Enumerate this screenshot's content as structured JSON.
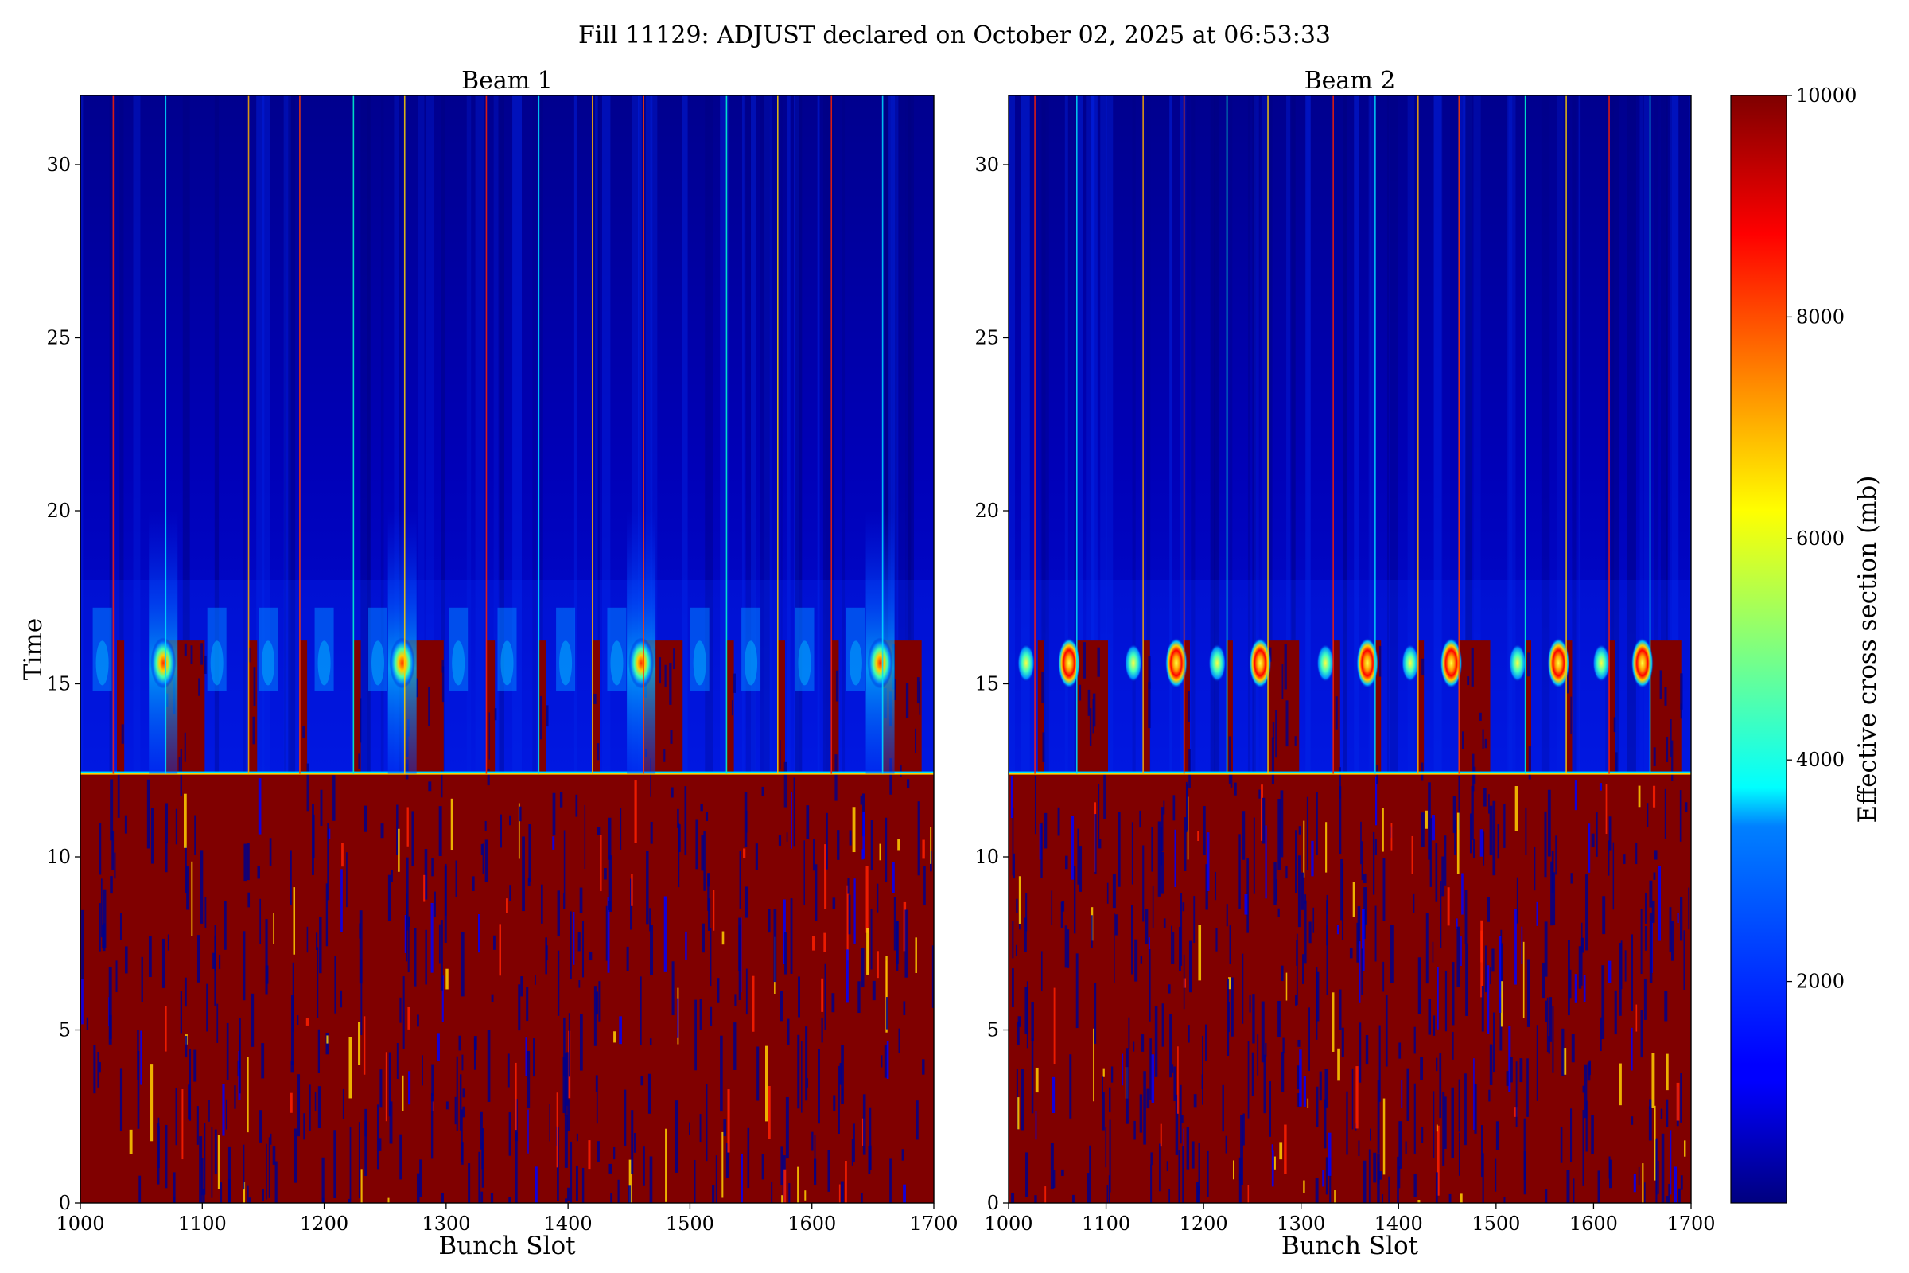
{
  "figure_title": "Fill 11129: ADJUST declared on October 02, 2025 at 06:53:33",
  "colorbar": {
    "label": "Effective cross section (mb)",
    "range": [
      0,
      10000
    ],
    "ticks": [
      "2000",
      "4000",
      "6000",
      "8000",
      "10000"
    ],
    "colormap": "jet"
  },
  "chart_data": [
    {
      "type": "heatmap",
      "title": "Beam 1",
      "xlabel": "Bunch Slot",
      "ylabel": "Time",
      "xlim": [
        1000,
        1700
      ],
      "ylim": [
        0,
        32
      ],
      "xticks": [
        "1000",
        "1100",
        "1200",
        "1300",
        "1400",
        "1500",
        "1600",
        "1700"
      ],
      "yticks": [
        "0",
        "5",
        "10",
        "15",
        "20",
        "25",
        "30"
      ],
      "saturated_below_time": 12.4,
      "bright_columns": [
        1027,
        1070,
        1138,
        1180,
        1224,
        1266,
        1333,
        1376,
        1420,
        1462,
        1530,
        1572,
        1616,
        1658
      ],
      "train_gaps": [
        [
          1030,
          1036
        ],
        [
          1070,
          1102
        ],
        [
          1138,
          1145
        ],
        [
          1180,
          1186
        ],
        [
          1224,
          1230
        ],
        [
          1266,
          1298
        ],
        [
          1333,
          1340
        ],
        [
          1376,
          1382
        ],
        [
          1420,
          1426
        ],
        [
          1462,
          1494
        ],
        [
          1530,
          1536
        ],
        [
          1572,
          1578
        ],
        [
          1616,
          1622
        ],
        [
          1658,
          1690
        ]
      ],
      "hotspots": [
        {
          "slot": 1068,
          "time": 15.6
        },
        {
          "slot": 1264,
          "time": 15.6
        },
        {
          "slot": 1460,
          "time": 15.6
        },
        {
          "slot": 1656,
          "time": 15.6
        }
      ]
    },
    {
      "type": "heatmap",
      "title": "Beam 2",
      "xlabel": "Bunch Slot",
      "ylabel": "",
      "xlim": [
        1000,
        1700
      ],
      "ylim": [
        0,
        32
      ],
      "xticks": [
        "1000",
        "1100",
        "1200",
        "1300",
        "1400",
        "1500",
        "1600",
        "1700"
      ],
      "yticks": [
        "0",
        "5",
        "10",
        "15",
        "20",
        "25",
        "30"
      ],
      "saturated_below_time": 12.4,
      "bright_columns": [
        1027,
        1070,
        1138,
        1180,
        1224,
        1266,
        1333,
        1376,
        1420,
        1462,
        1530,
        1572,
        1616,
        1658
      ],
      "train_gaps": [
        [
          1030,
          1036
        ],
        [
          1070,
          1102
        ],
        [
          1138,
          1145
        ],
        [
          1180,
          1186
        ],
        [
          1224,
          1230
        ],
        [
          1266,
          1298
        ],
        [
          1333,
          1340
        ],
        [
          1376,
          1382
        ],
        [
          1420,
          1426
        ],
        [
          1462,
          1494
        ],
        [
          1530,
          1536
        ],
        [
          1572,
          1578
        ],
        [
          1616,
          1622
        ],
        [
          1658,
          1690
        ]
      ],
      "hotspots": [
        {
          "slot": 1018,
          "time": 15.6
        },
        {
          "slot": 1062,
          "time": 15.6
        },
        {
          "slot": 1128,
          "time": 15.6
        },
        {
          "slot": 1172,
          "time": 15.6
        },
        {
          "slot": 1214,
          "time": 15.6
        },
        {
          "slot": 1258,
          "time": 15.6
        },
        {
          "slot": 1325,
          "time": 15.6
        },
        {
          "slot": 1368,
          "time": 15.6
        },
        {
          "slot": 1412,
          "time": 15.6
        },
        {
          "slot": 1454,
          "time": 15.6
        },
        {
          "slot": 1522,
          "time": 15.6
        },
        {
          "slot": 1564,
          "time": 15.6
        },
        {
          "slot": 1608,
          "time": 15.6
        },
        {
          "slot": 1650,
          "time": 15.6
        }
      ]
    }
  ]
}
